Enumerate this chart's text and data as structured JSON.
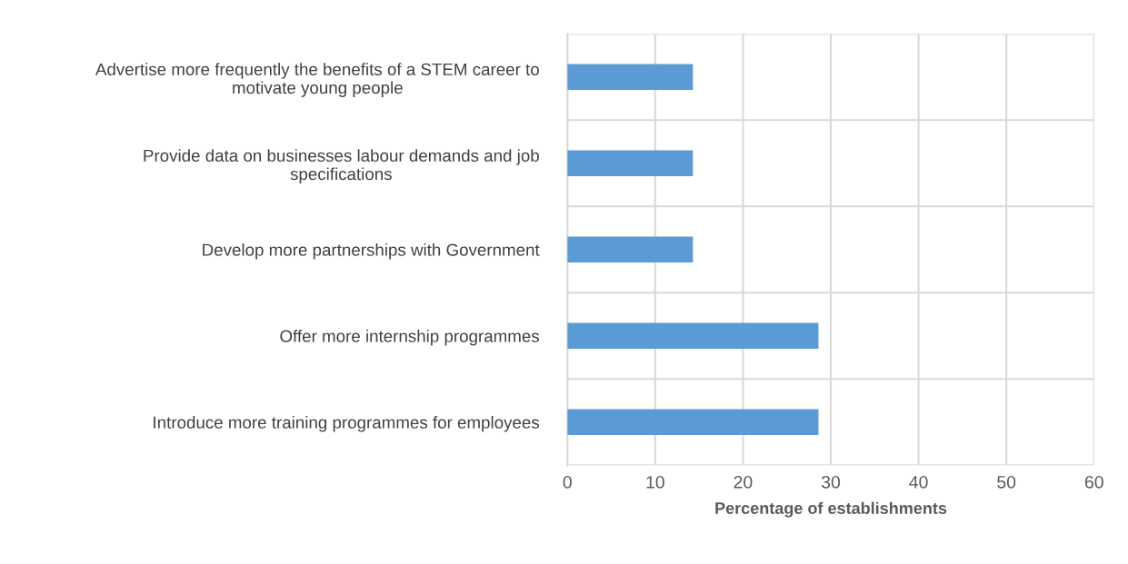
{
  "chart_data": {
    "type": "bar",
    "orientation": "horizontal",
    "categories": [
      "Advertise more frequently the benefits of a STEM career to motivate young people",
      "Provide data on businesses labour demands and job specifications",
      "Develop more partnerships with Government",
      "Offer more internship programmes",
      "Introduce more training programmes for employees"
    ],
    "values": [
      14.3,
      14.3,
      14.3,
      28.6,
      28.6
    ],
    "color": "#5b9bd5",
    "xlabel": "Percentage of establishments",
    "xlim": [
      0,
      60
    ],
    "xticks": [
      0,
      10,
      20,
      30,
      40,
      50,
      60
    ],
    "grid": true
  }
}
